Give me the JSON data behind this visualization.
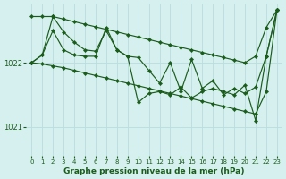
{
  "title": "Graphe pression niveau de la mer (hPa)",
  "background_color": "#d6f0f0",
  "grid_color": "#b8dede",
  "line_color": "#1a5c1a",
  "marker_color": "#1a5c1a",
  "yticks": [
    1021,
    1022
  ],
  "ylim": [
    1020.55,
    1022.92
  ],
  "xlim": [
    -0.5,
    23.5
  ],
  "xticks": [
    0,
    1,
    2,
    3,
    4,
    5,
    6,
    7,
    8,
    9,
    10,
    11,
    12,
    13,
    14,
    15,
    16,
    17,
    18,
    19,
    20,
    21,
    22,
    23
  ],
  "series": {
    "trend_top": [
      1022.72,
      1022.72,
      1022.72,
      1022.68,
      1022.64,
      1022.6,
      1022.56,
      1022.52,
      1022.48,
      1022.44,
      1022.4,
      1022.36,
      1022.32,
      1022.28,
      1022.24,
      1022.2,
      1022.16,
      1022.12,
      1022.08,
      1022.04,
      1022.0,
      1022.1,
      1022.55,
      1022.82
    ],
    "trend_bottom": [
      1022.0,
      1021.98,
      1021.95,
      1021.92,
      1021.88,
      1021.84,
      1021.8,
      1021.76,
      1021.72,
      1021.68,
      1021.64,
      1021.6,
      1021.56,
      1021.52,
      1021.48,
      1021.44,
      1021.4,
      1021.36,
      1021.32,
      1021.28,
      1021.24,
      1021.2,
      1021.55,
      1022.82
    ],
    "wave1": [
      1022.0,
      1022.12,
      1022.72,
      1022.48,
      1022.32,
      1022.2,
      1022.18,
      1022.5,
      1022.2,
      1022.1,
      1021.38,
      1021.52,
      1021.55,
      1021.5,
      1021.62,
      1021.45,
      1021.55,
      1021.6,
      1021.55,
      1021.5,
      1021.65,
      1021.1,
      1022.1,
      1022.82
    ],
    "wave2": [
      1022.0,
      1022.12,
      1022.5,
      1022.2,
      1022.12,
      1022.1,
      1022.1,
      1022.55,
      1022.2,
      1022.1,
      1022.08,
      1021.88,
      1021.68,
      1022.0,
      1021.55,
      1022.05,
      1021.6,
      1021.72,
      1021.5,
      1021.6,
      1021.52,
      1021.62,
      1022.1,
      1022.82
    ]
  }
}
